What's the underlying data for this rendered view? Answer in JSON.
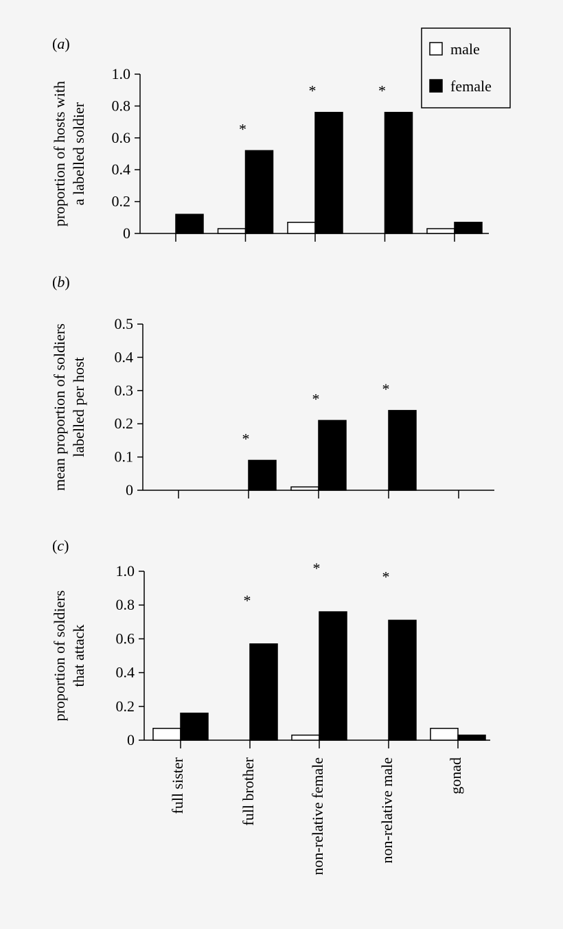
{
  "categories": [
    "full sister",
    "full brother",
    "non-relative female",
    "non-relative male",
    "gonad"
  ],
  "legend": {
    "items": [
      {
        "label": "male",
        "color": "#ffffff"
      },
      {
        "label": "female",
        "color": "#000000"
      }
    ]
  },
  "chart_data": [
    {
      "type": "bar",
      "panel_label": "a",
      "ylabel": [
        "proportion of hosts with",
        "a labelled soldier"
      ],
      "ylim": [
        0,
        1.0
      ],
      "yticks": [
        "0",
        "0.2",
        "0.4",
        "0.6",
        "0.8",
        "1.0"
      ],
      "categories": [
        "full sister",
        "full brother",
        "non-relative female",
        "non-relative male",
        "gonad"
      ],
      "series": [
        {
          "name": "male",
          "values": [
            0,
            0.03,
            0.07,
            0,
            0.03
          ]
        },
        {
          "name": "female",
          "values": [
            0.12,
            0.52,
            0.76,
            0.76,
            0.07
          ]
        }
      ],
      "significant": [
        false,
        true,
        true,
        true,
        false
      ],
      "marker": "*"
    },
    {
      "type": "bar",
      "panel_label": "b",
      "ylabel": [
        "mean proportion of soldiers",
        "labelled per host"
      ],
      "ylim": [
        0,
        0.5
      ],
      "yticks": [
        "0",
        "0.1",
        "0.2",
        "0.3",
        "0.4",
        "0.5"
      ],
      "categories": [
        "full sister",
        "full brother",
        "non-relative female",
        "non-relative male",
        "gonad"
      ],
      "series": [
        {
          "name": "male",
          "values": [
            0,
            0,
            0.01,
            0,
            0
          ]
        },
        {
          "name": "female",
          "values": [
            0,
            0.09,
            0.21,
            0.24,
            0
          ]
        }
      ],
      "significant": [
        false,
        true,
        true,
        true,
        false
      ],
      "marker": "*"
    },
    {
      "type": "bar",
      "panel_label": "c",
      "ylabel": [
        "proportion of soldiers",
        "that attack"
      ],
      "ylim": [
        0,
        1.0
      ],
      "yticks": [
        "0",
        "0.2",
        "0.4",
        "0.6",
        "0.8",
        "1.0"
      ],
      "categories": [
        "full sister",
        "full brother",
        "non-relative female",
        "non-relative male",
        "gonad"
      ],
      "series": [
        {
          "name": "male",
          "values": [
            0.07,
            0,
            0.03,
            0,
            0.07
          ]
        },
        {
          "name": "female",
          "values": [
            0.16,
            0.57,
            0.76,
            0.71,
            0.03
          ]
        }
      ],
      "significant": [
        false,
        true,
        true,
        true,
        false
      ],
      "marker": "*"
    }
  ]
}
